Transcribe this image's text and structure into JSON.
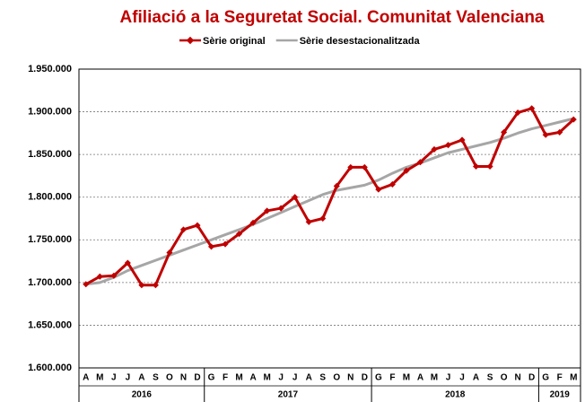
{
  "chart_data": {
    "type": "line",
    "title": "Afiliació a la Seguretat Social. Comunitat Valenciana",
    "groups": [
      {
        "label": "2016",
        "months": [
          "A",
          "M",
          "J",
          "J",
          "A",
          "S",
          "O",
          "N",
          "D"
        ]
      },
      {
        "label": "2017",
        "months": [
          "G",
          "F",
          "M",
          "A",
          "M",
          "J",
          "J",
          "A",
          "S",
          "O",
          "N",
          "D"
        ]
      },
      {
        "label": "2018",
        "months": [
          "G",
          "F",
          "M",
          "A",
          "M",
          "J",
          "J",
          "A",
          "S",
          "O",
          "N",
          "D"
        ]
      },
      {
        "label": "2019",
        "months": [
          "G",
          "F",
          "M"
        ]
      }
    ],
    "series": [
      {
        "name": "Sèrie original",
        "color": "#c00000",
        "marker": true,
        "values": [
          1698000,
          1707000,
          1708000,
          1723000,
          1697000,
          1697000,
          1735000,
          1762000,
          1767000,
          1742000,
          1745000,
          1757000,
          1770000,
          1784000,
          1787000,
          1800000,
          1771000,
          1775000,
          1813000,
          1835000,
          1835000,
          1809000,
          1815000,
          1831000,
          1841000,
          1856000,
          1861000,
          1867000,
          1836000,
          1836000,
          1876000,
          1899000,
          1904000,
          1873000,
          1876000,
          1891000
        ]
      },
      {
        "name": "Sèrie desestacionalitzada",
        "color": "#a6a6a6",
        "marker": false,
        "values": [
          1698000,
          1700000,
          1706000,
          1714000,
          1720000,
          1726000,
          1732000,
          1738000,
          1744000,
          1750000,
          1756000,
          1762000,
          1768000,
          1775000,
          1782000,
          1789000,
          1796000,
          1803000,
          1808000,
          1811000,
          1814000,
          1820000,
          1828000,
          1835000,
          1840000,
          1846000,
          1852000,
          1856000,
          1860000,
          1864000,
          1869000,
          1875000,
          1880000,
          1884000,
          1888000,
          1892000
        ]
      }
    ],
    "ylim": [
      1600000,
      1950000
    ],
    "yticks": [
      {
        "value": 1600000,
        "label": "1.600.000"
      },
      {
        "value": 1650000,
        "label": "1.650.000"
      },
      {
        "value": 1700000,
        "label": "1.700.000"
      },
      {
        "value": 1750000,
        "label": "1.750.000"
      },
      {
        "value": 1800000,
        "label": "1.800.000"
      },
      {
        "value": 1850000,
        "label": "1.850.000"
      },
      {
        "value": 1900000,
        "label": "1.900.000"
      },
      {
        "value": 1950000,
        "label": "1.950.000"
      }
    ],
    "grid": true
  }
}
